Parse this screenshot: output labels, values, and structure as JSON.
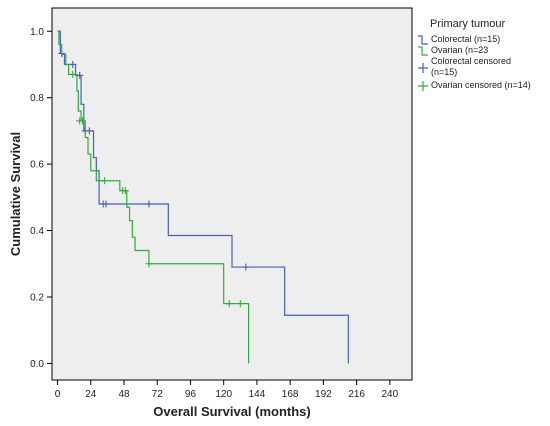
{
  "chart_data": {
    "type": "line",
    "subtype": "kaplan-meier step",
    "title": "",
    "xlabel": "Overall Survival (months)",
    "ylabel": "Cumulative Survival",
    "xlim": [
      -4,
      256
    ],
    "ylim": [
      -0.05,
      1.07
    ],
    "x_ticks": [
      0,
      24,
      48,
      72,
      96,
      120,
      144,
      168,
      192,
      216,
      240
    ],
    "y_ticks": [
      0.0,
      0.2,
      0.4,
      0.6,
      0.8,
      1.0
    ],
    "y_tick_labels": [
      "0.0",
      "0.2",
      "0.4",
      "0.6",
      "0.8",
      "1.0"
    ],
    "grid": false,
    "background": "#eeeeee",
    "legend": {
      "title": "Primary tumour",
      "placement": "right",
      "entries": [
        {
          "label": "Colorectal (n=15)",
          "kind": "line",
          "color": "#4a5fb5"
        },
        {
          "label": "Ovarian (n=23",
          "kind": "line",
          "color": "#2fad3a"
        },
        {
          "label_lines": [
            "Colorectal censored",
            "(n=15)"
          ],
          "kind": "censor",
          "color": "#4a5fb5"
        },
        {
          "label": "Ovarian censored (n=14)",
          "kind": "censor",
          "color": "#2fad3a"
        }
      ]
    },
    "series": [
      {
        "color": "#4a5fb5",
        "steps": [
          [
            0,
            1.0
          ],
          [
            2,
            0.933
          ],
          [
            5,
            0.9
          ],
          [
            13,
            0.867
          ],
          [
            17,
            0.78
          ],
          [
            19,
            0.7
          ],
          [
            26,
            0.62
          ],
          [
            28,
            0.58
          ],
          [
            30,
            0.48
          ],
          [
            80,
            0.385
          ],
          [
            126,
            0.29
          ],
          [
            164,
            0.145
          ],
          [
            210,
            0.0
          ]
        ],
        "end_x": 210,
        "censored": [
          [
            3,
            0.933
          ],
          [
            11,
            0.9
          ],
          [
            16,
            0.867
          ],
          [
            20,
            0.7
          ],
          [
            23,
            0.7
          ],
          [
            33,
            0.48
          ],
          [
            35,
            0.48
          ],
          [
            66,
            0.48
          ],
          [
            136,
            0.29
          ]
        ]
      },
      {
        "color": "#2fad3a",
        "steps": [
          [
            0,
            1.0
          ],
          [
            1,
            0.96
          ],
          [
            3,
            0.93
          ],
          [
            6,
            0.9
          ],
          [
            8,
            0.87
          ],
          [
            14,
            0.82
          ],
          [
            15,
            0.76
          ],
          [
            17,
            0.73
          ],
          [
            20,
            0.68
          ],
          [
            22,
            0.63
          ],
          [
            24,
            0.58
          ],
          [
            28,
            0.55
          ],
          [
            45,
            0.52
          ],
          [
            50,
            0.47
          ],
          [
            52,
            0.43
          ],
          [
            54,
            0.38
          ],
          [
            56,
            0.34
          ],
          [
            66,
            0.3
          ],
          [
            120,
            0.18
          ],
          [
            138,
            0.0
          ]
        ],
        "end_x": 138,
        "censored": [
          [
            11,
            0.87
          ],
          [
            16,
            0.73
          ],
          [
            18,
            0.73
          ],
          [
            34,
            0.55
          ],
          [
            47,
            0.52
          ],
          [
            49,
            0.52
          ],
          [
            66,
            0.3
          ],
          [
            124,
            0.18
          ],
          [
            132,
            0.18
          ]
        ]
      }
    ]
  }
}
